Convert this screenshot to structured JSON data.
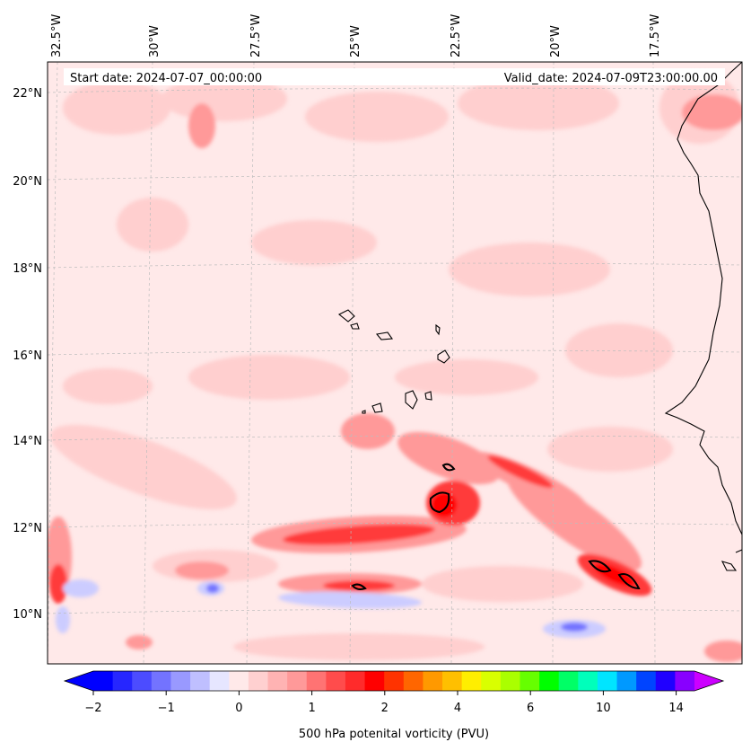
{
  "map": {
    "header_left": "Start date: 2024-07-07_00:00:00",
    "header_right": "Valid_date: 2024-07-09T23:00:00.00",
    "lon_labels": [
      "32.5°W",
      "30°W",
      "27.5°W",
      "25°W",
      "22.5°W",
      "20°W",
      "17.5°W"
    ],
    "lat_labels": [
      "22°N",
      "20°N",
      "18°N",
      "16°N",
      "14°N",
      "12°N",
      "10°N"
    ],
    "colors": {
      "ocean_background": "#ffe9e9",
      "coastline": "#000000",
      "gridline": "#bdbdbd"
    }
  },
  "colorbar": {
    "label": "500 hPa potenital vorticity (PVU)",
    "ticks": [
      "−2",
      "−1",
      "0",
      "1",
      "2",
      "4",
      "6",
      "10",
      "14"
    ],
    "colors": [
      "#0000ff",
      "#2626ff",
      "#4c4cff",
      "#7373ff",
      "#9999ff",
      "#bfbfff",
      "#e6e6ff",
      "#ffe9e9",
      "#ffd0d0",
      "#ffb3b3",
      "#ff9999",
      "#ff7373",
      "#ff4c4c",
      "#ff2b2b",
      "#ff0000",
      "#ff3300",
      "#ff6600",
      "#ff9900",
      "#ffbf00",
      "#ffee00",
      "#d9ff00",
      "#aaff00",
      "#66ff00",
      "#00ff00",
      "#00ff66",
      "#00ffbb",
      "#00e5ff",
      "#0099ff",
      "#0044ff",
      "#2000ff",
      "#8800ff"
    ],
    "extend_min_color": "#0000ff",
    "extend_max_color": "#cc00ff"
  }
}
